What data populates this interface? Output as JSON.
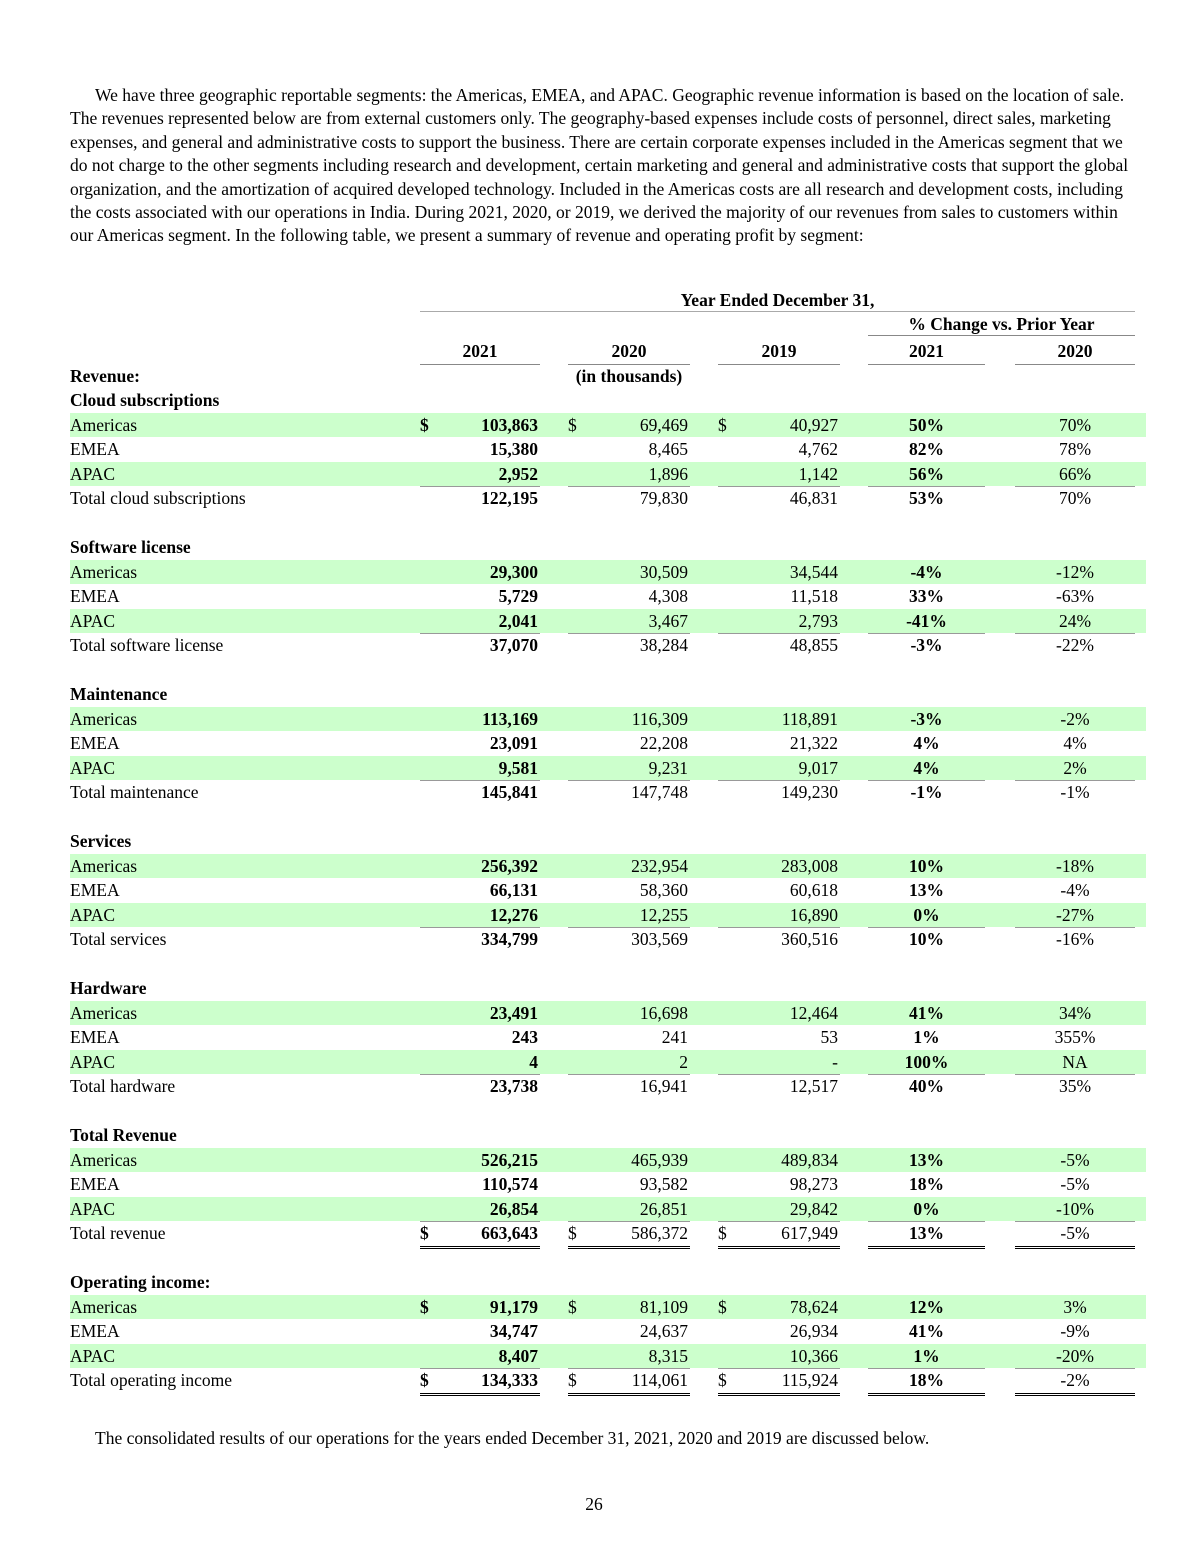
{
  "intro": "We have three geographic reportable segments: the Americas, EMEA, and APAC. Geographic revenue information is based on the location of sale. The revenues represented below are from external customers only. The geography-based expenses include costs of personnel, direct sales, marketing expenses, and general and administrative costs to support the business. There are certain corporate expenses included in the Americas segment that we do not charge to the other segments including research and development, certain marketing and general and administrative costs that support the global organization, and the amortization of acquired developed technology. Included in the Americas costs are all research and development costs, including the costs associated with our operations in India. During 2021, 2020, or 2019, we derived the majority of our revenues from sales to customers within our Americas segment. In the following table, we present a summary of revenue and operating profit by segment:",
  "table": {
    "period_header": "Year Ended December 31,",
    "pct_header": "% Change vs. Prior Year",
    "years": [
      "2021",
      "2020",
      "2019"
    ],
    "pct_years": [
      "2021",
      "2020"
    ],
    "units": "(in thousands)",
    "revenue_label": "Revenue:",
    "currency": "$",
    "highlight_color": "#ccffcc",
    "sections": [
      {
        "name": "Cloud subscriptions",
        "rows": [
          {
            "label": "Americas",
            "v": [
              "103,863",
              "69,469",
              "40,927"
            ],
            "p": [
              "50%",
              "70%"
            ],
            "cur": true
          },
          {
            "label": "EMEA",
            "v": [
              "15,380",
              "8,465",
              "4,762"
            ],
            "p": [
              "82%",
              "78%"
            ]
          },
          {
            "label": "APAC",
            "v": [
              "2,952",
              "1,896",
              "1,142"
            ],
            "p": [
              "56%",
              "66%"
            ]
          },
          {
            "label": "Total cloud subscriptions",
            "v": [
              "122,195",
              "79,830",
              "46,831"
            ],
            "p": [
              "53%",
              "70%"
            ]
          }
        ]
      },
      {
        "name": "Software license",
        "rows": [
          {
            "label": "Americas",
            "v": [
              "29,300",
              "30,509",
              "34,544"
            ],
            "p": [
              "-4%",
              "-12%"
            ]
          },
          {
            "label": "EMEA",
            "v": [
              "5,729",
              "4,308",
              "11,518"
            ],
            "p": [
              "33%",
              "-63%"
            ]
          },
          {
            "label": "APAC",
            "v": [
              "2,041",
              "3,467",
              "2,793"
            ],
            "p": [
              "-41%",
              "24%"
            ]
          },
          {
            "label": "Total software license",
            "v": [
              "37,070",
              "38,284",
              "48,855"
            ],
            "p": [
              "-3%",
              "-22%"
            ]
          }
        ]
      },
      {
        "name": "Maintenance",
        "rows": [
          {
            "label": "Americas",
            "v": [
              "113,169",
              "116,309",
              "118,891"
            ],
            "p": [
              "-3%",
              "-2%"
            ]
          },
          {
            "label": "EMEA",
            "v": [
              "23,091",
              "22,208",
              "21,322"
            ],
            "p": [
              "4%",
              "4%"
            ]
          },
          {
            "label": "APAC",
            "v": [
              "9,581",
              "9,231",
              "9,017"
            ],
            "p": [
              "4%",
              "2%"
            ]
          },
          {
            "label": "Total maintenance",
            "v": [
              "145,841",
              "147,748",
              "149,230"
            ],
            "p": [
              "-1%",
              "-1%"
            ]
          }
        ]
      },
      {
        "name": "Services",
        "rows": [
          {
            "label": "Americas",
            "v": [
              "256,392",
              "232,954",
              "283,008"
            ],
            "p": [
              "10%",
              "-18%"
            ]
          },
          {
            "label": "EMEA",
            "v": [
              "66,131",
              "58,360",
              "60,618"
            ],
            "p": [
              "13%",
              "-4%"
            ]
          },
          {
            "label": "APAC",
            "v": [
              "12,276",
              "12,255",
              "16,890"
            ],
            "p": [
              "0%",
              "-27%"
            ]
          },
          {
            "label": "Total services",
            "v": [
              "334,799",
              "303,569",
              "360,516"
            ],
            "p": [
              "10%",
              "-16%"
            ]
          }
        ]
      },
      {
        "name": "Hardware",
        "rows": [
          {
            "label": "Americas",
            "v": [
              "23,491",
              "16,698",
              "12,464"
            ],
            "p": [
              "41%",
              "34%"
            ]
          },
          {
            "label": "EMEA",
            "v": [
              "243",
              "241",
              "53"
            ],
            "p": [
              "1%",
              "355%"
            ]
          },
          {
            "label": "APAC",
            "v": [
              "4",
              "2",
              "-"
            ],
            "p": [
              "100%",
              "NA"
            ]
          },
          {
            "label": "Total hardware",
            "v": [
              "23,738",
              "16,941",
              "12,517"
            ],
            "p": [
              "40%",
              "35%"
            ]
          }
        ]
      },
      {
        "name": "Total Revenue",
        "rows": [
          {
            "label": "Americas",
            "v": [
              "526,215",
              "465,939",
              "489,834"
            ],
            "p": [
              "13%",
              "-5%"
            ]
          },
          {
            "label": "EMEA",
            "v": [
              "110,574",
              "93,582",
              "98,273"
            ],
            "p": [
              "18%",
              "-5%"
            ]
          },
          {
            "label": "APAC",
            "v": [
              "26,854",
              "26,851",
              "29,842"
            ],
            "p": [
              "0%",
              "-10%"
            ]
          },
          {
            "label": "Total revenue",
            "v": [
              "663,643",
              "586,372",
              "617,949"
            ],
            "p": [
              "13%",
              "-5%"
            ],
            "cur": true,
            "dbl": true
          }
        ]
      },
      {
        "name": "Operating income:",
        "rows": [
          {
            "label": "Americas",
            "v": [
              "91,179",
              "81,109",
              "78,624"
            ],
            "p": [
              "12%",
              "3%"
            ],
            "cur": true
          },
          {
            "label": "EMEA",
            "v": [
              "34,747",
              "24,637",
              "26,934"
            ],
            "p": [
              "41%",
              "-9%"
            ]
          },
          {
            "label": "APAC",
            "v": [
              "8,407",
              "8,315",
              "10,366"
            ],
            "p": [
              "1%",
              "-20%"
            ]
          },
          {
            "label": "Total operating income",
            "v": [
              "134,333",
              "114,061",
              "115,924"
            ],
            "p": [
              "18%",
              "-2%"
            ],
            "cur": true,
            "dbl": true
          }
        ]
      }
    ]
  },
  "outro": "The consolidated results of our operations for the years ended December 31, 2021, 2020 and 2019 are discussed below.",
  "page_number": "26"
}
